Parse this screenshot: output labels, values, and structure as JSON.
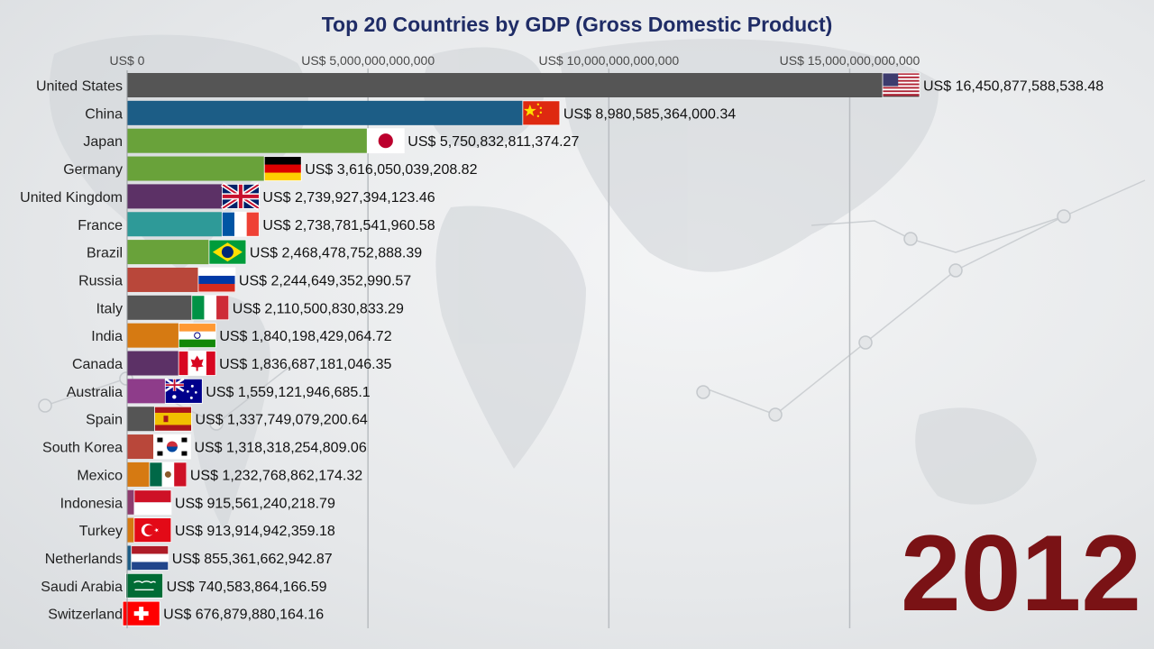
{
  "chart_data": {
    "type": "bar",
    "orientation": "horizontal",
    "title": "Top 20 Countries by GDP (Gross Domestic Product)",
    "year": "2012",
    "x_ticks": [
      {
        "value": 0,
        "label": "US$ 0"
      },
      {
        "value": 5000000000000,
        "label": "US$ 5,000,000,000,000"
      },
      {
        "value": 10000000000000,
        "label": "US$ 10,000,000,000,000"
      },
      {
        "value": 15000000000000,
        "label": "US$ 15,000,000,000,000"
      }
    ],
    "xlim": [
      0,
      16450877588538.48
    ],
    "grid": true,
    "rows": [
      {
        "country": "United States",
        "value": 16450877588538.48,
        "label": "US$ 16,450,877,588,538.48",
        "color": "#555555",
        "flag": "us-flag"
      },
      {
        "country": "China",
        "value": 8980585364000.34,
        "label": "US$ 8,980,585,364,000.34",
        "color": "#1c5d86",
        "flag": "china-flag"
      },
      {
        "country": "Japan",
        "value": 5750832811374.27,
        "label": "US$ 5,750,832,811,374.27",
        "color": "#69a23a",
        "flag": "japan-flag"
      },
      {
        "country": "Germany",
        "value": 3616050039208.82,
        "label": "US$ 3,616,050,039,208.82",
        "color": "#69a23a",
        "flag": "germany-flag"
      },
      {
        "country": "United Kingdom",
        "value": 2739927394123.46,
        "label": "US$ 2,739,927,394,123.46",
        "color": "#5c3166",
        "flag": "uk-flag"
      },
      {
        "country": "France",
        "value": 2738781541960.58,
        "label": "US$ 2,738,781,541,960.58",
        "color": "#2e9a98",
        "flag": "france-flag"
      },
      {
        "country": "Brazil",
        "value": 2468478752888.39,
        "label": "US$ 2,468,478,752,888.39",
        "color": "#69a23a",
        "flag": "brazil-flag"
      },
      {
        "country": "Russia",
        "value": 2244649352990.57,
        "label": "US$ 2,244,649,352,990.57",
        "color": "#b9473a",
        "flag": "russia-flag"
      },
      {
        "country": "Italy",
        "value": 2110500830833.29,
        "label": "US$ 2,110,500,830,833.29",
        "color": "#555555",
        "flag": "italy-flag"
      },
      {
        "country": "India",
        "value": 1840198429064.72,
        "label": "US$ 1,840,198,429,064.72",
        "color": "#d67a12",
        "flag": "india-flag"
      },
      {
        "country": "Canada",
        "value": 1836687181046.35,
        "label": "US$ 1,836,687,181,046.35",
        "color": "#5c3166",
        "flag": "canada-flag"
      },
      {
        "country": "Australia",
        "value": 1559121946685.1,
        "label": "US$ 1,559,121,946,685.1",
        "color": "#8e3c8a",
        "flag": "australia-flag"
      },
      {
        "country": "Spain",
        "value": 1337749079200.64,
        "label": "US$ 1,337,749,079,200.64",
        "color": "#555555",
        "flag": "spain-flag"
      },
      {
        "country": "South Korea",
        "value": 1318318254809.06,
        "label": "US$ 1,318,318,254,809.06",
        "color": "#b9473a",
        "flag": "south-korea-flag"
      },
      {
        "country": "Mexico",
        "value": 1232768862174.32,
        "label": "US$ 1,232,768,862,174.32",
        "color": "#d67a12",
        "flag": "mexico-flag"
      },
      {
        "country": "Indonesia",
        "value": 915561240218.79,
        "label": "US$ 915,561,240,218.79",
        "color": "#8e3c6e",
        "flag": "indonesia-flag"
      },
      {
        "country": "Turkey",
        "value": 913914942359.18,
        "label": "US$ 913,914,942,359.18",
        "color": "#d67a12",
        "flag": "turkey-flag"
      },
      {
        "country": "Netherlands",
        "value": 855361662942.87,
        "label": "US$ 855,361,662,942.87",
        "color": "#1c5d86",
        "flag": "netherlands-flag"
      },
      {
        "country": "Saudi Arabia",
        "value": 740583864166.59,
        "label": "US$ 740,583,864,166.59",
        "color": "#555555",
        "flag": "saudi-arabia-flag"
      },
      {
        "country": "Switzerland",
        "value": 676879880164.16,
        "label": "US$ 676,879,880,164.16",
        "color": "#b9473a",
        "flag": "switzerland-flag"
      }
    ]
  }
}
